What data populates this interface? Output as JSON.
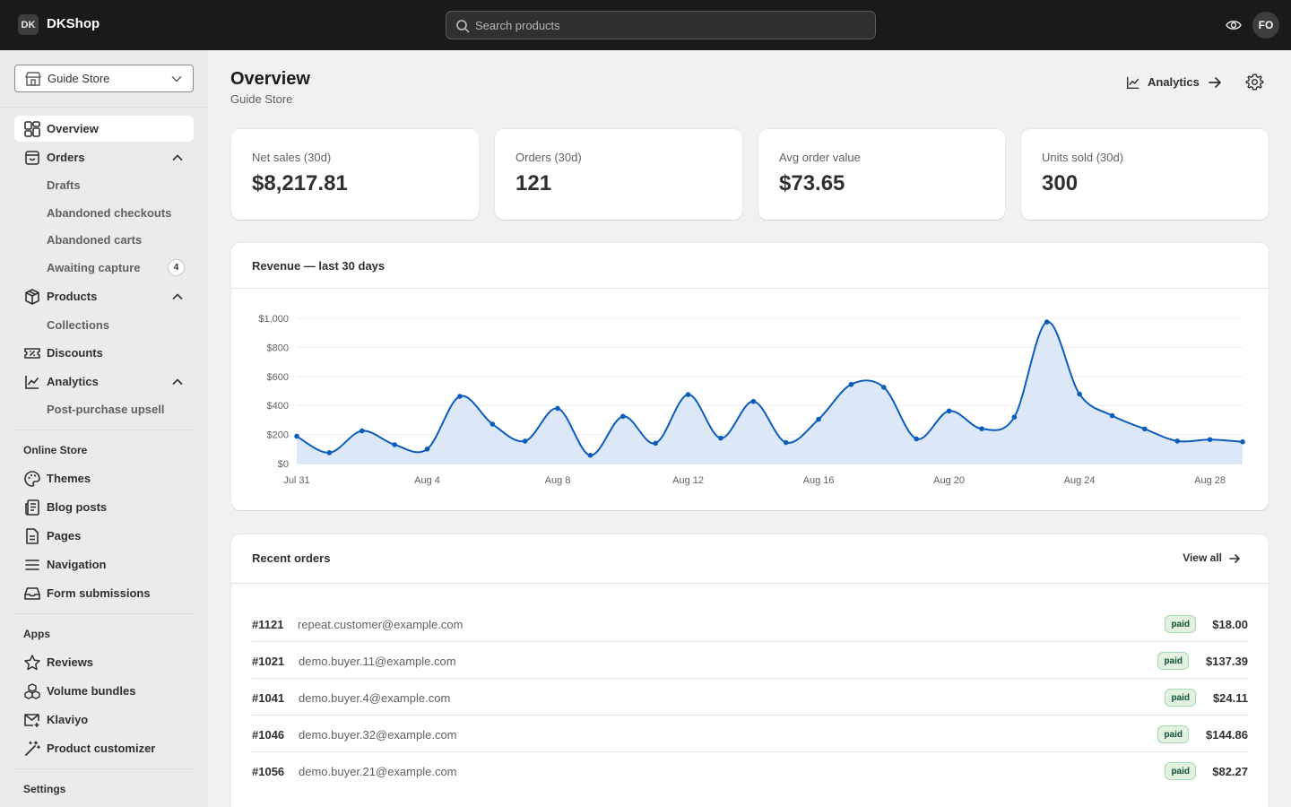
{
  "topbar": {
    "brand_initials": "DK",
    "brand_name": "DKShop",
    "search_placeholder": "Search products",
    "avatar_initials": "FO"
  },
  "sidebar": {
    "store_selector": "Guide Store",
    "nav": [
      {
        "label": "Overview",
        "icon": "overview-icon",
        "active": true
      },
      {
        "label": "Orders",
        "icon": "orders-icon"
      },
      {
        "label": "Drafts",
        "sub": true
      },
      {
        "label": "Abandoned checkouts",
        "sub": true
      },
      {
        "label": "Abandoned carts",
        "sub": true
      },
      {
        "label": "Awaiting capture",
        "sub": true,
        "count": "4"
      },
      {
        "label": "Products",
        "icon": "products-icon"
      },
      {
        "label": "Collections",
        "sub": true
      },
      {
        "label": "Discounts",
        "icon": "discount-icon"
      },
      {
        "label": "Analytics",
        "icon": "analytics-icon"
      },
      {
        "label": "Post-purchase upsell",
        "sub": true
      }
    ],
    "online_store_heading": "Online Store",
    "online_store": [
      {
        "label": "Themes",
        "icon": "palette-icon"
      },
      {
        "label": "Blog posts",
        "icon": "blog-icon"
      },
      {
        "label": "Pages",
        "icon": "page-icon"
      },
      {
        "label": "Navigation",
        "icon": "menu-icon"
      },
      {
        "label": "Form submissions",
        "icon": "inbox-icon"
      }
    ],
    "apps_heading": "Apps",
    "apps": [
      {
        "label": "Reviews",
        "icon": "star-icon"
      },
      {
        "label": "Volume bundles",
        "icon": "bundles-icon"
      },
      {
        "label": "Klaviyo",
        "icon": "email-icon"
      },
      {
        "label": "Product customizer",
        "icon": "wand-icon"
      }
    ],
    "settings_heading": "Settings"
  },
  "header": {
    "title": "Overview",
    "subtitle": "Guide Store",
    "analytics_label": "Analytics"
  },
  "stats": [
    {
      "label": "Net sales (30d)",
      "value": "$8,217.81"
    },
    {
      "label": "Orders (30d)",
      "value": "121"
    },
    {
      "label": "Avg order value",
      "value": "$73.65"
    },
    {
      "label": "Units sold (30d)",
      "value": "300"
    }
  ],
  "revenue_card": {
    "title": "Revenue — last 30 days"
  },
  "chart_data": {
    "type": "area",
    "title": "Revenue — last 30 days",
    "xlabel": "",
    "ylabel": "",
    "x": [
      "Jul 31",
      "Aug 1",
      "Aug 2",
      "Aug 3",
      "Aug 4",
      "Aug 5",
      "Aug 6",
      "Aug 7",
      "Aug 8",
      "Aug 9",
      "Aug 10",
      "Aug 11",
      "Aug 12",
      "Aug 13",
      "Aug 14",
      "Aug 15",
      "Aug 16",
      "Aug 17",
      "Aug 18",
      "Aug 19",
      "Aug 20",
      "Aug 21",
      "Aug 22",
      "Aug 23",
      "Aug 24",
      "Aug 25",
      "Aug 26",
      "Aug 27",
      "Aug 28",
      "Aug 29"
    ],
    "x_tick_labels": [
      "Jul 31",
      "Aug 4",
      "Aug 8",
      "Aug 12",
      "Aug 16",
      "Aug 20",
      "Aug 24",
      "Aug 28"
    ],
    "values": [
      188,
      75,
      225,
      130,
      100,
      463,
      272,
      155,
      380,
      57,
      325,
      140,
      475,
      175,
      428,
      145,
      305,
      545,
      525,
      170,
      362,
      240,
      320,
      975,
      478,
      330,
      238,
      155,
      165,
      150
    ],
    "y_ticks": [
      "$0",
      "$200",
      "$400",
      "$600",
      "$800",
      "$1,000"
    ],
    "ylim": [
      0,
      1000
    ],
    "grid": true,
    "color": "#0b5cbd",
    "fill": "#dce8f8"
  },
  "orders_card": {
    "title": "Recent orders",
    "view_all": "View all",
    "rows": [
      {
        "number": "#1121",
        "email": "repeat.customer@example.com",
        "status": "paid",
        "amount": "$18.00"
      },
      {
        "number": "#1021",
        "email": "demo.buyer.11@example.com",
        "status": "paid",
        "amount": "$137.39"
      },
      {
        "number": "#1041",
        "email": "demo.buyer.4@example.com",
        "status": "paid",
        "amount": "$24.11"
      },
      {
        "number": "#1046",
        "email": "demo.buyer.32@example.com",
        "status": "paid",
        "amount": "$144.86"
      },
      {
        "number": "#1056",
        "email": "demo.buyer.21@example.com",
        "status": "paid",
        "amount": "$82.27"
      }
    ]
  }
}
